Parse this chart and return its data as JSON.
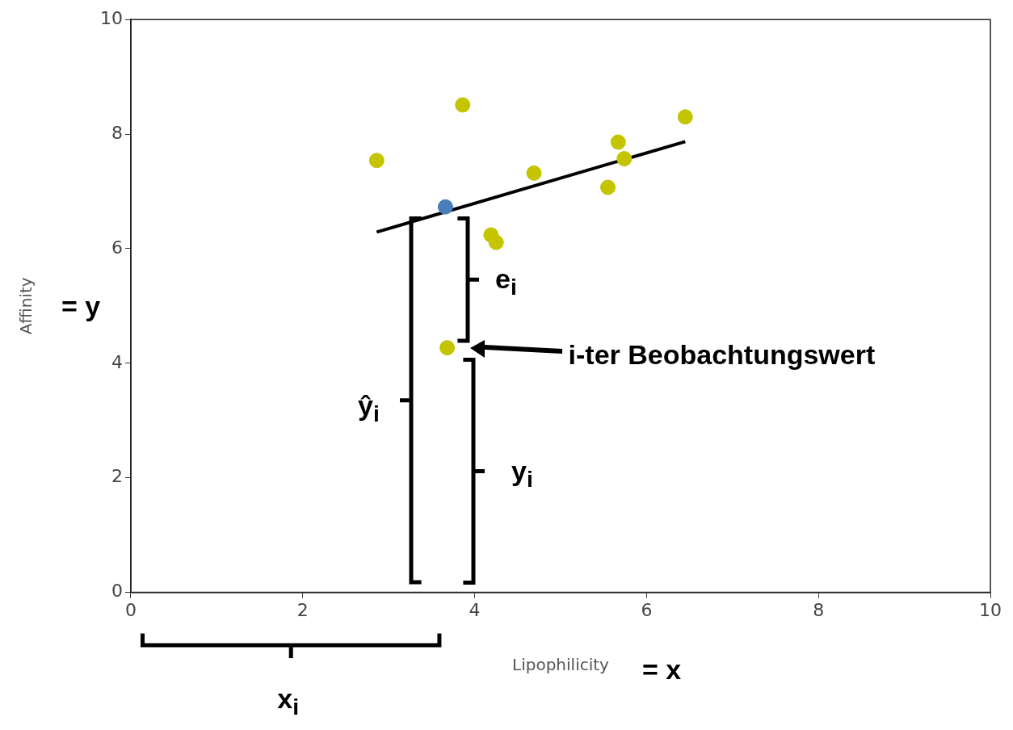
{
  "chart_data": {
    "type": "scatter",
    "xlabel": "Lipophilicity",
    "ylabel": "Affinity",
    "xlim": [
      0,
      10
    ],
    "xticks": [
      0,
      2,
      4,
      6,
      8,
      10
    ],
    "ylim": [
      0,
      10
    ],
    "yticks": [
      0,
      2,
      4,
      6,
      8,
      10
    ],
    "grid": false,
    "legend": false,
    "series": [
      {
        "marker": "circle",
        "color": "#c4c400",
        "x": [
          2.86,
          3.86,
          3.68,
          4.19,
          4.25,
          4.69,
          5.55,
          5.67,
          5.74,
          6.45
        ],
        "values": [
          7.54,
          8.51,
          4.27,
          6.24,
          6.11,
          7.32,
          7.07,
          7.86,
          7.57,
          8.3
        ]
      },
      {
        "marker": "circle",
        "color": "#4a7ebb",
        "x": [
          3.66
        ],
        "values": [
          6.73
        ]
      },
      {
        "type": "line",
        "marker": "none",
        "color": "#000000",
        "x": [
          2.86,
          6.45
        ],
        "values": [
          6.29,
          7.87
        ]
      }
    ],
    "annotations": [
      "= y",
      "= x",
      "e$_{i}$",
      "i-ter Beobachtungswert",
      "ŷ$_{i}$",
      "y$_{i}$",
      "x$_{i}$"
    ]
  }
}
